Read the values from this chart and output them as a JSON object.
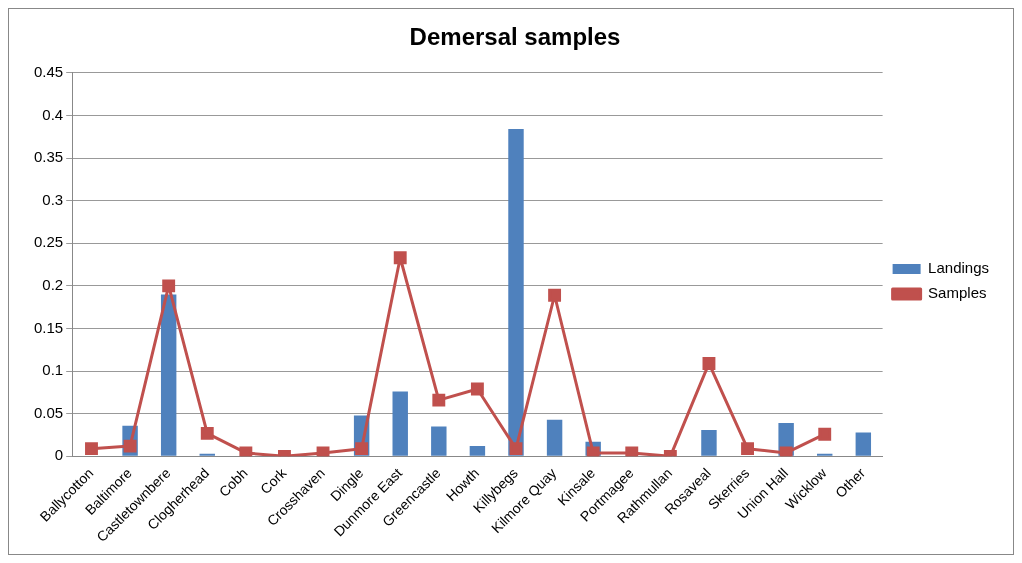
{
  "chart_data": {
    "type": "bar",
    "title": "Demersal samples",
    "categories": [
      "Ballycotton",
      "Baltimore",
      "Castletownbere",
      "Clogherhead",
      "Cobh",
      "Cork",
      "Crosshaven",
      "Dingle",
      "Dunmore East",
      "Greencastle",
      "Howth",
      "Killybegs",
      "Kilmore Quay",
      "Kinsale",
      "Portmagee",
      "Rathmullan",
      "Rosaveal",
      "Skerries",
      "Union Hall",
      "Wicklow",
      "Other"
    ],
    "series": [
      {
        "name": "Landings",
        "color": "#4f81bd",
        "values": [
          0,
          0.036,
          0.19,
          0.003,
          0,
          0,
          0,
          0.048,
          0.076,
          0.035,
          0.012,
          0.384,
          0.043,
          0.017,
          0,
          0,
          0.031,
          0,
          0.039,
          0.003,
          0.028
        ]
      },
      {
        "name": "Samples",
        "type": "line",
        "color": "#c0504d",
        "marker": "square",
        "values": [
          0.009,
          0.012,
          0.2,
          0.027,
          0.004,
          0,
          0.004,
          0.009,
          0.233,
          0.066,
          0.079,
          0.009,
          0.189,
          0.004,
          0.004,
          0,
          0.109,
          0.009,
          0.004,
          0.026,
          null
        ]
      }
    ],
    "ylim": [
      0,
      0.45
    ],
    "yticks": [
      0,
      0.05,
      0.1,
      0.15,
      0.2,
      0.25,
      0.3,
      0.35,
      0.4,
      0.45
    ],
    "grid": "y",
    "legend": "right"
  }
}
